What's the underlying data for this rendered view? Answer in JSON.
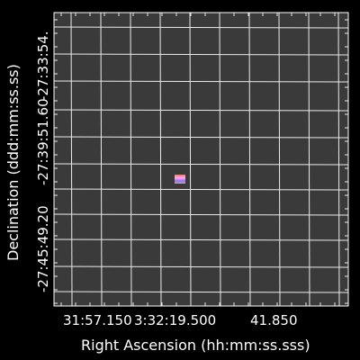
{
  "axes": {
    "xlabel": "Right Ascension (hh:mm:ss.sss)",
    "ylabel": "Declination (ddd:mm:ss.ss)",
    "x_ticks": [
      "31:57.150",
      "3:32:19.500",
      "41.850"
    ],
    "y_ticks": [
      "-27:33:54.",
      "-27:39:51.60",
      "-27:45:49.20"
    ]
  },
  "colors": {
    "background": "#000000",
    "plot_area": "#3a3a3a",
    "grid": "#ffffff",
    "marker_gradient": [
      "#ff6a6a",
      "#ffb0ff",
      "#7a7aff",
      "#ffa040"
    ]
  },
  "source": {
    "marker": "colored-pixel-block"
  }
}
